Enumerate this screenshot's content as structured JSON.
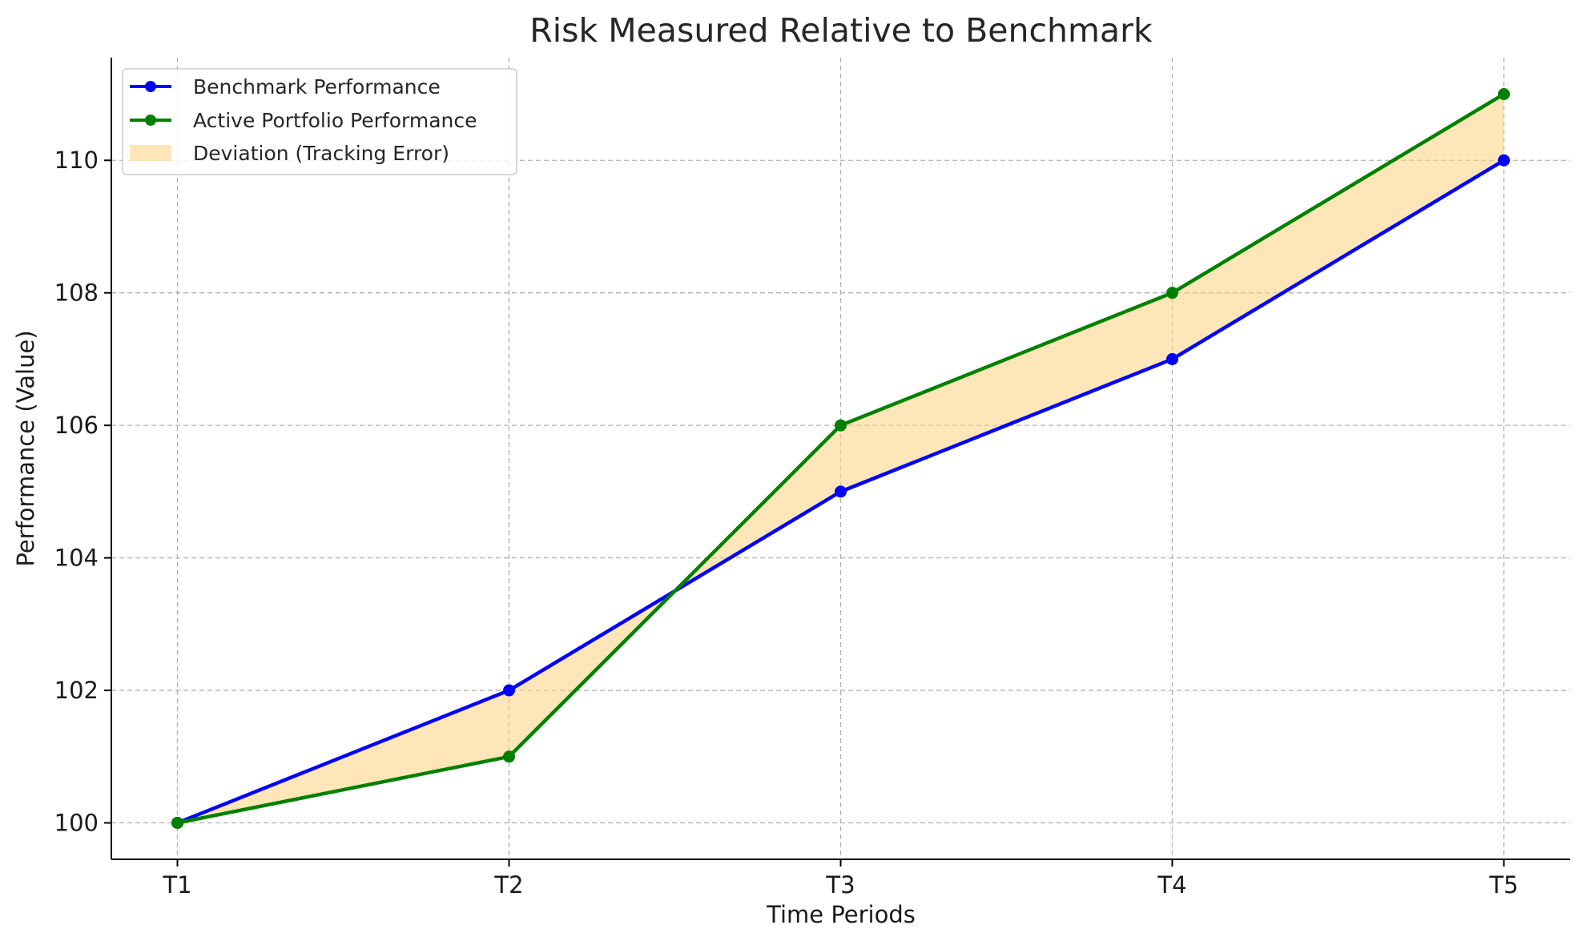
{
  "chart_data": {
    "type": "line",
    "title": "Risk Measured Relative to Benchmark",
    "xlabel": "Time Periods",
    "ylabel": "Performance (Value)",
    "categories": [
      "T1",
      "T2",
      "T3",
      "T4",
      "T5"
    ],
    "series": [
      {
        "name": "Benchmark Performance",
        "values": [
          100,
          102,
          105,
          107,
          110
        ],
        "color": "#0000ff"
      },
      {
        "name": "Active Portfolio Performance",
        "values": [
          100,
          101,
          106,
          108,
          111
        ],
        "color": "#008000"
      }
    ],
    "fill_between": {
      "name": "Deviation (Tracking Error)",
      "color": "#ffd27f",
      "opacity": 0.55
    },
    "ylim": [
      99.45,
      111.55
    ],
    "yticks": [
      100,
      102,
      104,
      106,
      108,
      110
    ],
    "grid": true,
    "legend_position": "upper left"
  }
}
